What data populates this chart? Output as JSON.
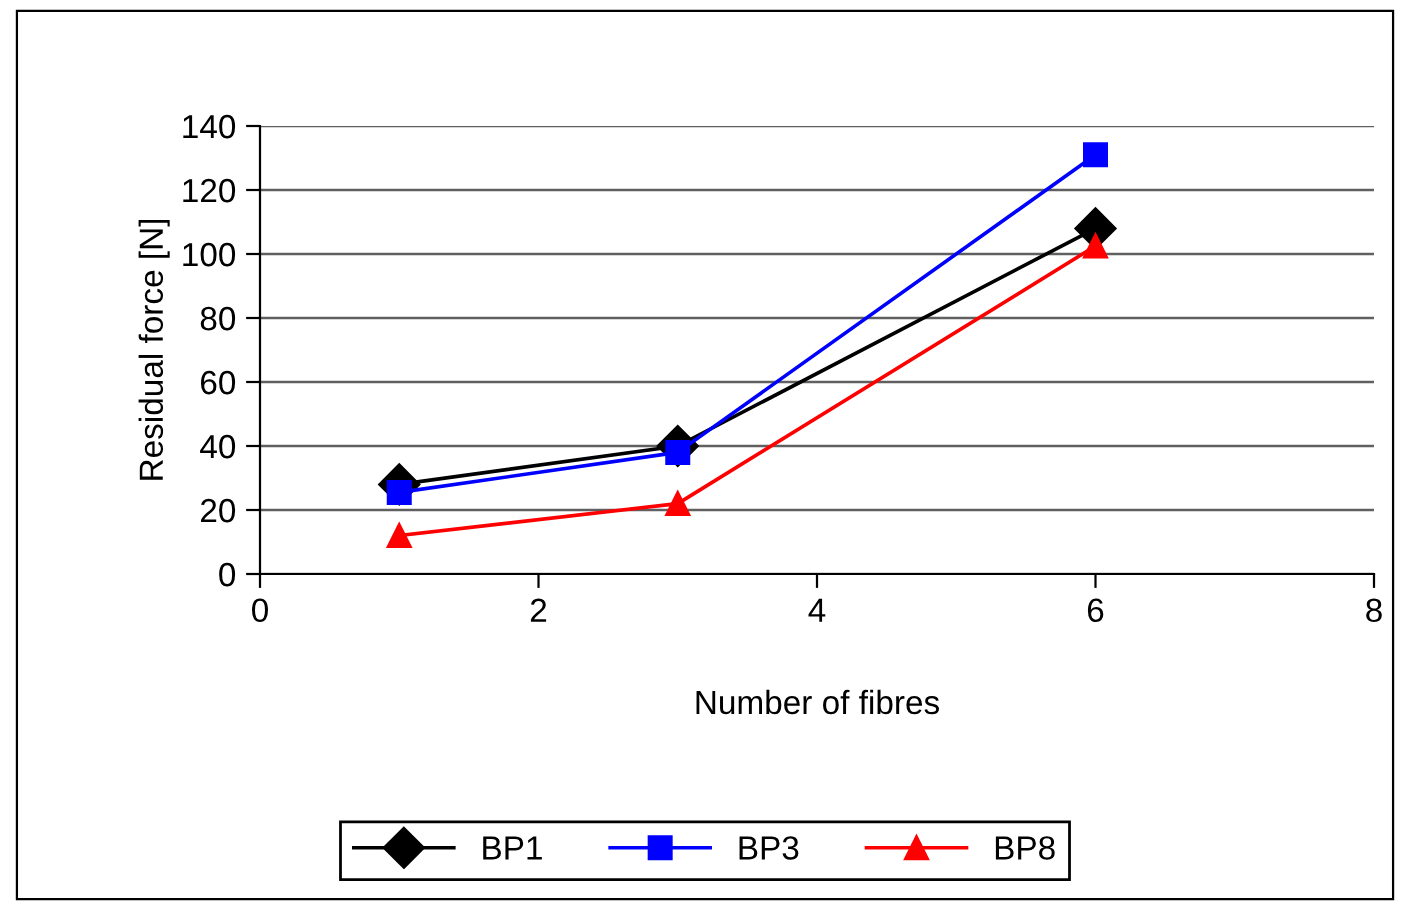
{
  "chart_data": {
    "type": "line",
    "xlabel": "Number of fibres",
    "ylabel": "Residual force [N]",
    "x": [
      1,
      3,
      6
    ],
    "series": [
      {
        "name": "BP1",
        "color": "#000000",
        "values": [
          28,
          40,
          108
        ],
        "marker": "diamond"
      },
      {
        "name": "BP3",
        "color": "#0000ff",
        "values": [
          25.5,
          38,
          131
        ],
        "marker": "square"
      },
      {
        "name": "BP8",
        "color": "#ff0000",
        "values": [
          12,
          22,
          102.5
        ],
        "marker": "triangle"
      }
    ],
    "xlim": [
      0,
      8
    ],
    "xticks": [
      0,
      2,
      4,
      6,
      8
    ],
    "ylim": [
      0,
      140
    ],
    "yticks": [
      0,
      20,
      40,
      60,
      80,
      100,
      120,
      140
    ],
    "grid": "y",
    "legend": "bottom",
    "line_style": "solid"
  }
}
